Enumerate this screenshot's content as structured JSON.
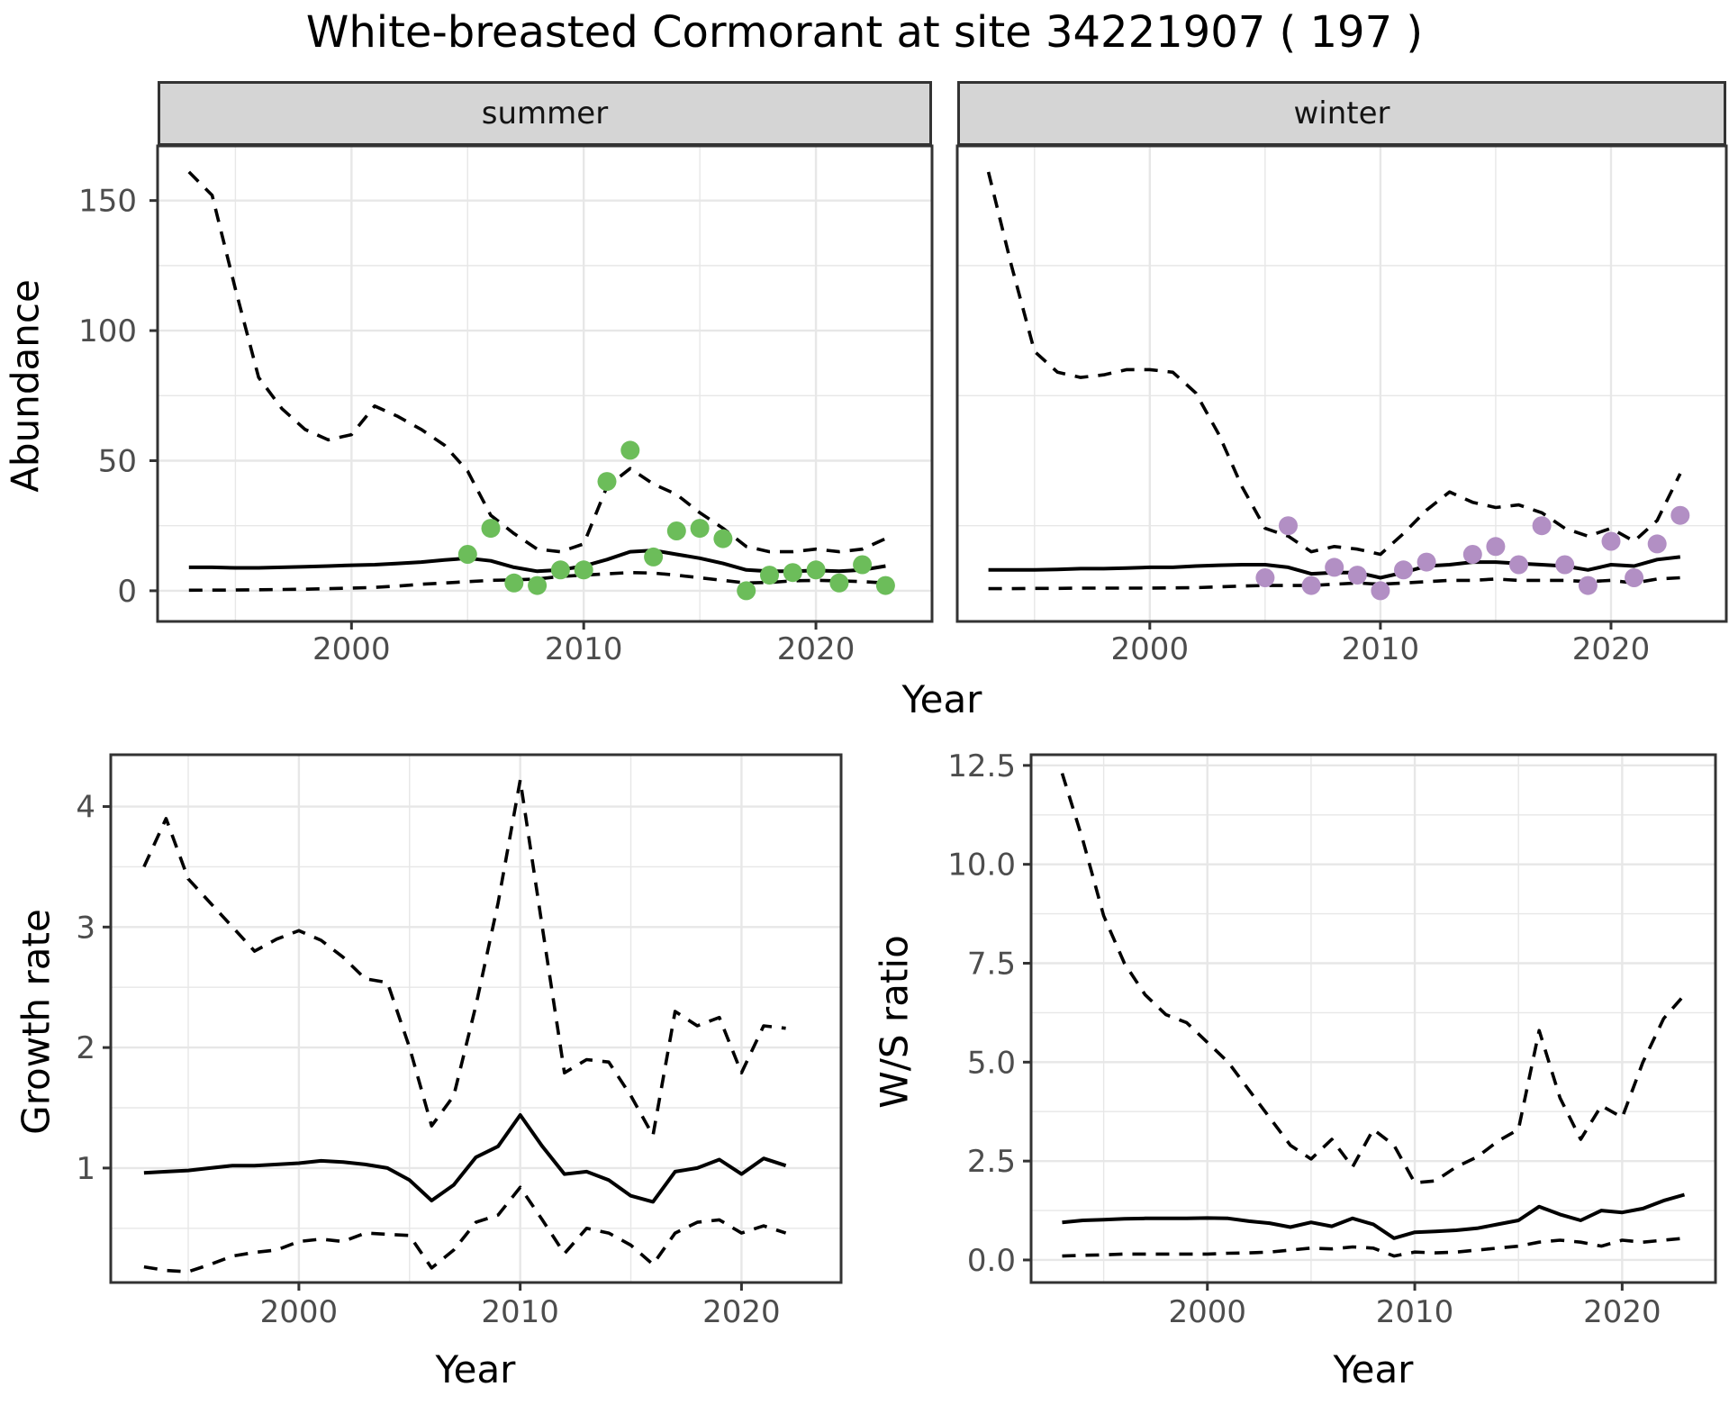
{
  "title": "White-breasted Cormorant at site 34221907 ( 197 )",
  "facets": {
    "summer": "summer",
    "winter": "winter"
  },
  "axes": {
    "abundance": "Abundance",
    "year": "Year",
    "growth_rate": "Growth rate",
    "ws_ratio": "W/S ratio"
  },
  "colors": {
    "summer_point": "#6cbd5a",
    "winter_point": "#b28fc4",
    "line": "#000000",
    "grid": "#e7e7e7",
    "strip_bg": "#d5d5d5",
    "panel_border": "#333333",
    "tick_text": "#4d4d4d"
  },
  "chart_data": [
    {
      "id": "abundance_summer",
      "type": "line",
      "facet": "summer",
      "ylabel": "Abundance",
      "xlabel": "Year",
      "xlim": [
        1991.65,
        2025.0
      ],
      "ylim": [
        -11.8,
        171
      ],
      "grid": true,
      "legend_position": "none",
      "x": [
        1993,
        1994,
        1995,
        1996,
        1997,
        1998,
        1999,
        2000,
        2001,
        2002,
        2003,
        2004,
        2005,
        2006,
        2007,
        2008,
        2009,
        2010,
        2011,
        2012,
        2013,
        2014,
        2015,
        2016,
        2017,
        2018,
        2019,
        2020,
        2021,
        2022,
        2023
      ],
      "series": [
        {
          "name": "upper_95ci",
          "style": "dashed",
          "values": [
            161,
            152,
            116,
            82,
            70,
            62,
            58,
            60,
            71,
            67,
            62,
            56,
            46,
            29,
            22,
            16,
            15,
            18,
            40,
            47,
            41,
            37,
            30,
            24,
            17,
            15,
            15,
            16,
            15,
            16,
            20
          ]
        },
        {
          "name": "fitted",
          "style": "solid",
          "values": [
            9,
            9,
            8.8,
            8.8,
            9,
            9.2,
            9.5,
            9.8,
            10,
            10.5,
            11,
            11.8,
            12.5,
            11.5,
            9,
            7.5,
            8,
            9.5,
            12,
            15,
            15.5,
            14,
            12.5,
            10.5,
            8,
            7.5,
            7.5,
            7.8,
            7.5,
            8,
            9.5
          ]
        },
        {
          "name": "lower_95ci",
          "style": "dashed",
          "values": [
            0.2,
            0.25,
            0.3,
            0.4,
            0.5,
            0.6,
            0.8,
            1,
            1.3,
            1.8,
            2.5,
            3,
            3.5,
            4,
            4.2,
            4.5,
            5.5,
            6,
            6.5,
            7,
            6.8,
            6,
            5,
            4,
            3,
            3.2,
            3.8,
            4,
            3.8,
            3.5,
            3
          ]
        }
      ],
      "points": {
        "name": "observed_counts_summer",
        "color_key": "summer_point",
        "data": [
          [
            2005,
            14
          ],
          [
            2006,
            24
          ],
          [
            2007,
            3
          ],
          [
            2008,
            2
          ],
          [
            2009,
            8
          ],
          [
            2010,
            8
          ],
          [
            2011,
            42
          ],
          [
            2012,
            54
          ],
          [
            2013,
            13
          ],
          [
            2014,
            23
          ],
          [
            2015,
            24
          ],
          [
            2016,
            20
          ],
          [
            2017,
            0
          ],
          [
            2018,
            6
          ],
          [
            2019,
            7
          ],
          [
            2020,
            8
          ],
          [
            2021,
            3
          ],
          [
            2022,
            10
          ],
          [
            2023,
            2
          ]
        ]
      },
      "yticks": [
        {
          "v": 0,
          "label": "0"
        },
        {
          "v": 50,
          "label": "50"
        },
        {
          "v": 100,
          "label": "100"
        },
        {
          "v": 150,
          "label": "150"
        }
      ],
      "yminor": [
        25,
        75,
        125
      ],
      "xticks": [
        {
          "v": 2000,
          "label": "2000"
        },
        {
          "v": 2010,
          "label": "2010"
        },
        {
          "v": 2020,
          "label": "2020"
        }
      ],
      "xminor": [
        1995,
        2005,
        2015
      ]
    },
    {
      "id": "abundance_winter",
      "type": "line",
      "facet": "winter",
      "ylabel": "Abundance",
      "xlabel": "Year",
      "xlim": [
        1991.65,
        2025.0
      ],
      "ylim": [
        -11.8,
        171
      ],
      "grid": true,
      "legend_position": "none",
      "x": [
        1993,
        1994,
        1995,
        1996,
        1997,
        1998,
        1999,
        2000,
        2001,
        2002,
        2003,
        2004,
        2005,
        2006,
        2007,
        2008,
        2009,
        2010,
        2011,
        2012,
        2013,
        2014,
        2015,
        2016,
        2017,
        2018,
        2019,
        2020,
        2021,
        2022,
        2023
      ],
      "series": [
        {
          "name": "upper_95ci",
          "style": "dashed",
          "values": [
            161,
            125,
            92,
            84,
            82,
            83,
            85,
            85,
            84,
            76,
            60,
            40,
            24,
            21,
            15,
            17,
            16,
            14,
            22,
            31,
            38,
            34,
            32,
            33,
            30,
            24,
            21,
            24,
            19,
            27,
            45
          ]
        },
        {
          "name": "fitted",
          "style": "solid",
          "values": [
            8,
            8,
            8,
            8.2,
            8.5,
            8.5,
            8.7,
            9,
            9,
            9.5,
            9.8,
            10,
            10,
            9,
            6.5,
            7,
            7,
            5,
            7,
            9.5,
            10,
            11,
            11,
            10.5,
            10,
            9.5,
            8,
            10,
            9.5,
            12,
            13
          ]
        },
        {
          "name": "lower_95ci",
          "style": "dashed",
          "values": [
            0.8,
            0.8,
            0.9,
            0.9,
            1,
            1,
            1,
            1,
            1.1,
            1.2,
            1.5,
            1.8,
            2,
            2,
            2,
            2.5,
            3,
            2.5,
            3,
            3.5,
            4,
            4,
            4.5,
            4,
            4,
            4,
            3.5,
            4,
            3,
            4.5,
            5
          ]
        }
      ],
      "points": {
        "name": "observed_counts_winter",
        "color_key": "winter_point",
        "data": [
          [
            2005,
            5
          ],
          [
            2006,
            25
          ],
          [
            2007,
            2
          ],
          [
            2008,
            9
          ],
          [
            2009,
            6
          ],
          [
            2010,
            0
          ],
          [
            2011,
            8
          ],
          [
            2012,
            11
          ],
          [
            2014,
            14
          ],
          [
            2015,
            17
          ],
          [
            2016,
            10
          ],
          [
            2017,
            25
          ],
          [
            2018,
            10
          ],
          [
            2019,
            2
          ],
          [
            2020,
            19
          ],
          [
            2021,
            5
          ],
          [
            2022,
            18
          ],
          [
            2023,
            29
          ]
        ]
      },
      "yticks": [],
      "yminor": [
        25,
        75,
        125
      ],
      "xticks": [
        {
          "v": 2000,
          "label": "2000"
        },
        {
          "v": 2010,
          "label": "2010"
        },
        {
          "v": 2020,
          "label": "2020"
        }
      ],
      "xminor": [
        1995,
        2005,
        2015
      ]
    },
    {
      "id": "growth_rate",
      "type": "line",
      "ylabel": "Growth rate",
      "xlabel": "Year",
      "xlim": [
        1991.5,
        2024.5
      ],
      "ylim": [
        0.05,
        4.43
      ],
      "grid": true,
      "legend_position": "none",
      "x": [
        1993,
        1994,
        1995,
        1996,
        1997,
        1998,
        1999,
        2000,
        2001,
        2002,
        2003,
        2004,
        2005,
        2006,
        2007,
        2008,
        2009,
        2010,
        2011,
        2012,
        2013,
        2014,
        2015,
        2016,
        2017,
        2018,
        2019,
        2020,
        2021,
        2022
      ],
      "series": [
        {
          "name": "upper_95ci",
          "style": "dashed",
          "values": [
            3.5,
            3.9,
            3.4,
            3.2,
            3.0,
            2.8,
            2.9,
            2.97,
            2.89,
            2.75,
            2.57,
            2.54,
            2.0,
            1.35,
            1.6,
            2.35,
            3.2,
            4.22,
            3.0,
            1.79,
            1.9,
            1.88,
            1.6,
            1.27,
            2.3,
            2.18,
            2.25,
            1.79,
            2.18,
            2.16
          ]
        },
        {
          "name": "fitted",
          "style": "solid",
          "values": [
            0.96,
            0.97,
            0.98,
            1.0,
            1.02,
            1.02,
            1.03,
            1.04,
            1.06,
            1.05,
            1.03,
            1.0,
            0.9,
            0.73,
            0.86,
            1.09,
            1.18,
            1.44,
            1.18,
            0.95,
            0.97,
            0.9,
            0.77,
            0.72,
            0.97,
            1.0,
            1.07,
            0.95,
            1.08,
            1.02
          ]
        },
        {
          "name": "lower_95ci",
          "style": "dashed",
          "values": [
            0.18,
            0.15,
            0.14,
            0.2,
            0.27,
            0.3,
            0.32,
            0.39,
            0.41,
            0.39,
            0.46,
            0.45,
            0.44,
            0.17,
            0.32,
            0.55,
            0.61,
            0.84,
            0.57,
            0.29,
            0.5,
            0.46,
            0.36,
            0.2,
            0.46,
            0.55,
            0.57,
            0.46,
            0.52,
            0.46
          ]
        }
      ],
      "yticks": [
        {
          "v": 1,
          "label": "1"
        },
        {
          "v": 2,
          "label": "2"
        },
        {
          "v": 3,
          "label": "3"
        },
        {
          "v": 4,
          "label": "4"
        }
      ],
      "yminor": [
        0.5,
        1.5,
        2.5,
        3.5
      ],
      "xticks": [
        {
          "v": 2000,
          "label": "2000"
        },
        {
          "v": 2010,
          "label": "2010"
        },
        {
          "v": 2020,
          "label": "2020"
        }
      ],
      "xminor": [
        1995,
        2005,
        2015
      ]
    },
    {
      "id": "ws_ratio",
      "type": "line",
      "ylabel": "W/S ratio",
      "xlabel": "Year",
      "xlim": [
        1991.5,
        2024.5
      ],
      "ylim": [
        -0.57,
        12.77
      ],
      "grid": true,
      "legend_position": "none",
      "x": [
        1993,
        1994,
        1995,
        1996,
        1997,
        1998,
        1999,
        2000,
        2001,
        2002,
        2003,
        2004,
        2005,
        2006,
        2007,
        2008,
        2009,
        2010,
        2011,
        2012,
        2013,
        2014,
        2015,
        2016,
        2017,
        2018,
        2019,
        2020,
        2021,
        2022,
        2023
      ],
      "series": [
        {
          "name": "upper_95ci",
          "style": "dashed",
          "values": [
            12.3,
            10.6,
            8.7,
            7.5,
            6.7,
            6.2,
            6.0,
            5.5,
            5.0,
            4.3,
            3.6,
            2.9,
            2.55,
            3.05,
            2.35,
            3.3,
            2.9,
            1.95,
            2.0,
            2.35,
            2.6,
            3.0,
            3.3,
            5.8,
            4.1,
            3.05,
            3.9,
            3.6,
            5.0,
            6.1,
            6.7
          ]
        },
        {
          "name": "fitted",
          "style": "solid",
          "values": [
            0.95,
            1.0,
            1.02,
            1.04,
            1.05,
            1.05,
            1.05,
            1.06,
            1.05,
            0.98,
            0.93,
            0.83,
            0.95,
            0.85,
            1.05,
            0.9,
            0.55,
            0.7,
            0.72,
            0.75,
            0.8,
            0.9,
            1.0,
            1.35,
            1.15,
            1.0,
            1.25,
            1.2,
            1.3,
            1.5,
            1.65
          ]
        },
        {
          "name": "lower_95ci",
          "style": "dashed",
          "values": [
            0.1,
            0.12,
            0.13,
            0.15,
            0.15,
            0.15,
            0.15,
            0.15,
            0.17,
            0.18,
            0.2,
            0.25,
            0.3,
            0.28,
            0.33,
            0.3,
            0.1,
            0.2,
            0.18,
            0.2,
            0.25,
            0.3,
            0.35,
            0.45,
            0.5,
            0.45,
            0.35,
            0.5,
            0.45,
            0.5,
            0.55
          ]
        }
      ],
      "yticks": [
        {
          "v": 0,
          "label": "0.0"
        },
        {
          "v": 2.5,
          "label": "2.5"
        },
        {
          "v": 5,
          "label": "5.0"
        },
        {
          "v": 7.5,
          "label": "7.5"
        },
        {
          "v": 10,
          "label": "10.0"
        },
        {
          "v": 12.5,
          "label": "12.5"
        }
      ],
      "yminor": [
        1.25,
        3.75,
        6.25,
        8.75,
        11.25
      ],
      "xticks": [
        {
          "v": 2000,
          "label": "2000"
        },
        {
          "v": 2010,
          "label": "2010"
        },
        {
          "v": 2020,
          "label": "2020"
        }
      ],
      "xminor": [
        1995,
        2005,
        2015
      ]
    }
  ]
}
